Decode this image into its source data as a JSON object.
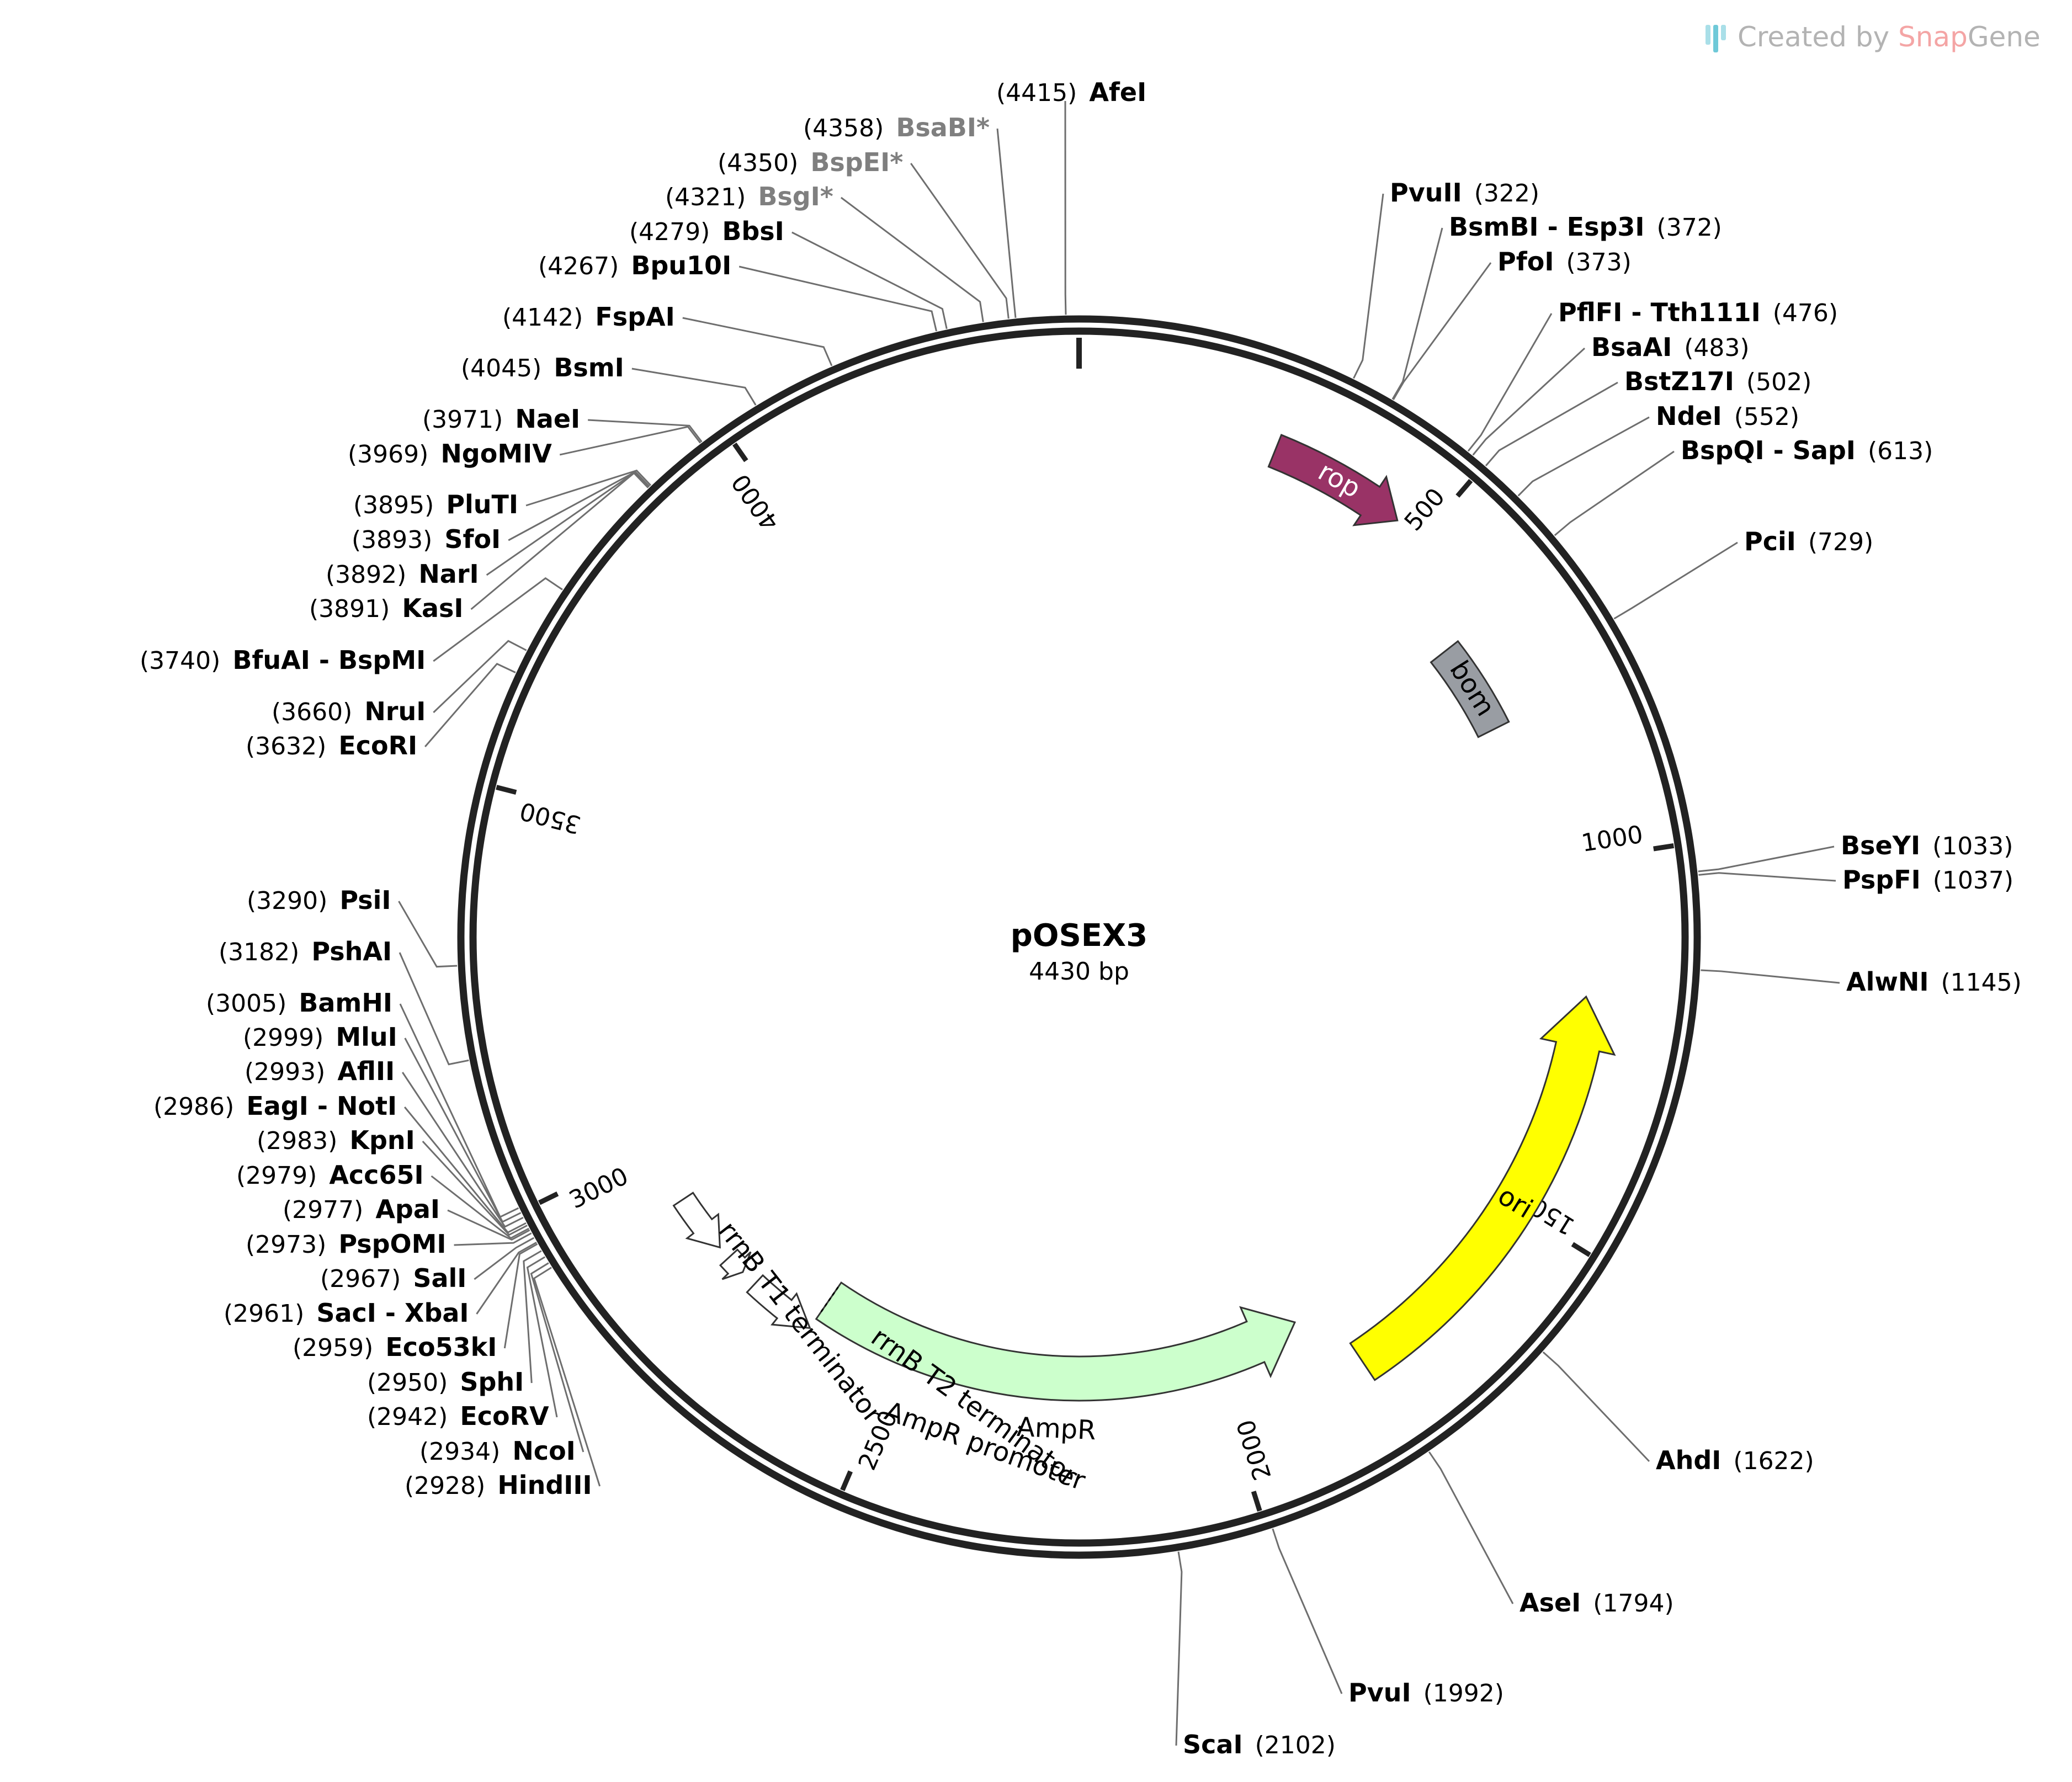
{
  "plasmid": {
    "name": "pOSEX3",
    "length_label": "4430 bp",
    "length": 4430
  },
  "watermark": {
    "prefix": "Created by ",
    "brand_a": "Snap",
    "brand_b": "Gene"
  },
  "ticks": [
    {
      "pos": 500,
      "label": "500"
    },
    {
      "pos": 1000,
      "label": "1000"
    },
    {
      "pos": 1500,
      "label": "1500"
    },
    {
      "pos": 2000,
      "label": "2000"
    },
    {
      "pos": 2500,
      "label": "2500"
    },
    {
      "pos": 3000,
      "label": "3000"
    },
    {
      "pos": 3500,
      "label": "3500"
    },
    {
      "pos": 4000,
      "label": "4000"
    }
  ],
  "features": [
    {
      "name": "rop",
      "start": 270,
      "end": 460,
      "direction": "cw",
      "color": "#993366",
      "text_color": "#ffffff",
      "kind": "arrow"
    },
    {
      "name": "bom",
      "start": 640,
      "end": 780,
      "direction": "none",
      "color": "#999da3",
      "text_color": "#000000",
      "kind": "box"
    },
    {
      "name": "ori",
      "start": 1190,
      "end": 1800,
      "direction": "ccw",
      "color": "#ffff00",
      "text_color": "#000000",
      "kind": "arrow"
    },
    {
      "name": "AmpR",
      "start": 1855,
      "end": 2640,
      "direction": "ccw",
      "color": "#ccffcc",
      "text_color": "#000000",
      "kind": "arrow"
    },
    {
      "name": "AmpR promoter",
      "start": 2640,
      "end": 2745,
      "direction": "ccw",
      "color": "#ffffff",
      "text_color": "#000000",
      "kind": "small-arrow"
    },
    {
      "name": "rrnB T2 terminator",
      "start": 2770,
      "end": 2800,
      "direction": "ccw",
      "color": "#ffffff",
      "text_color": "#000000",
      "kind": "small-arrow"
    },
    {
      "name": "rrnB T1 terminator",
      "start": 2820,
      "end": 2910,
      "direction": "ccw",
      "color": "#ffffff",
      "text_color": "#000000",
      "kind": "small-arrow"
    }
  ],
  "sites": [
    {
      "name": "AfeI",
      "pos": 4415,
      "star": false
    },
    {
      "name": "BsaBI*",
      "pos": 4358,
      "star": true
    },
    {
      "name": "BspEI*",
      "pos": 4350,
      "star": true
    },
    {
      "name": "BsgI*",
      "pos": 4321,
      "star": true
    },
    {
      "name": "BbsI",
      "pos": 4279,
      "star": false
    },
    {
      "name": "Bpu10I",
      "pos": 4267,
      "star": false
    },
    {
      "name": "FspAI",
      "pos": 4142,
      "star": false
    },
    {
      "name": "BsmI",
      "pos": 4045,
      "star": false
    },
    {
      "name": "NaeI",
      "pos": 3971,
      "star": false
    },
    {
      "name": "NgoMIV",
      "pos": 3969,
      "star": false
    },
    {
      "name": "PluTI",
      "pos": 3895,
      "star": false
    },
    {
      "name": "SfoI",
      "pos": 3893,
      "star": false
    },
    {
      "name": "NarI",
      "pos": 3892,
      "star": false
    },
    {
      "name": "KasI",
      "pos": 3891,
      "star": false
    },
    {
      "name": "BfuAI - BspMI",
      "pos": 3740,
      "star": false
    },
    {
      "name": "NruI",
      "pos": 3660,
      "star": false
    },
    {
      "name": "EcoRI",
      "pos": 3632,
      "star": false
    },
    {
      "name": "PsiI",
      "pos": 3290,
      "star": false
    },
    {
      "name": "PshAI",
      "pos": 3182,
      "star": false
    },
    {
      "name": "BamHI",
      "pos": 3005,
      "star": false
    },
    {
      "name": "MluI",
      "pos": 2999,
      "star": false
    },
    {
      "name": "AflII",
      "pos": 2993,
      "star": false
    },
    {
      "name": "EagI - NotI",
      "pos": 2986,
      "star": false
    },
    {
      "name": "KpnI",
      "pos": 2983,
      "star": false
    },
    {
      "name": "Acc65I",
      "pos": 2979,
      "star": false
    },
    {
      "name": "ApaI",
      "pos": 2977,
      "star": false
    },
    {
      "name": "PspOMI",
      "pos": 2973,
      "star": false
    },
    {
      "name": "SalI",
      "pos": 2967,
      "star": false
    },
    {
      "name": "SacI - XbaI",
      "pos": 2961,
      "star": false
    },
    {
      "name": "Eco53kI",
      "pos": 2959,
      "star": false
    },
    {
      "name": "SphI",
      "pos": 2950,
      "star": false
    },
    {
      "name": "EcoRV",
      "pos": 2942,
      "star": false
    },
    {
      "name": "NcoI",
      "pos": 2934,
      "star": false
    },
    {
      "name": "HindIII",
      "pos": 2928,
      "star": false
    },
    {
      "name": "PvuII",
      "pos": 322,
      "star": false
    },
    {
      "name": "BsmBI - Esp3I",
      "pos": 372,
      "star": false
    },
    {
      "name": "PfoI",
      "pos": 373,
      "star": false
    },
    {
      "name": "PflFI - Tth111I",
      "pos": 476,
      "star": false
    },
    {
      "name": "BsaAI",
      "pos": 483,
      "star": false
    },
    {
      "name": "BstZ17I",
      "pos": 502,
      "star": false
    },
    {
      "name": "NdeI",
      "pos": 552,
      "star": false
    },
    {
      "name": "BspQI - SapI",
      "pos": 613,
      "star": false
    },
    {
      "name": "PciI",
      "pos": 729,
      "star": false
    },
    {
      "name": "BseYI",
      "pos": 1033,
      "star": false
    },
    {
      "name": "PspFI",
      "pos": 1037,
      "star": false
    },
    {
      "name": "AlwNI",
      "pos": 1145,
      "star": false
    },
    {
      "name": "AhdI",
      "pos": 1622,
      "star": false
    },
    {
      "name": "AseI",
      "pos": 1794,
      "star": false
    },
    {
      "name": "PvuI",
      "pos": 1992,
      "star": false
    },
    {
      "name": "ScaI",
      "pos": 2102,
      "star": false
    }
  ]
}
